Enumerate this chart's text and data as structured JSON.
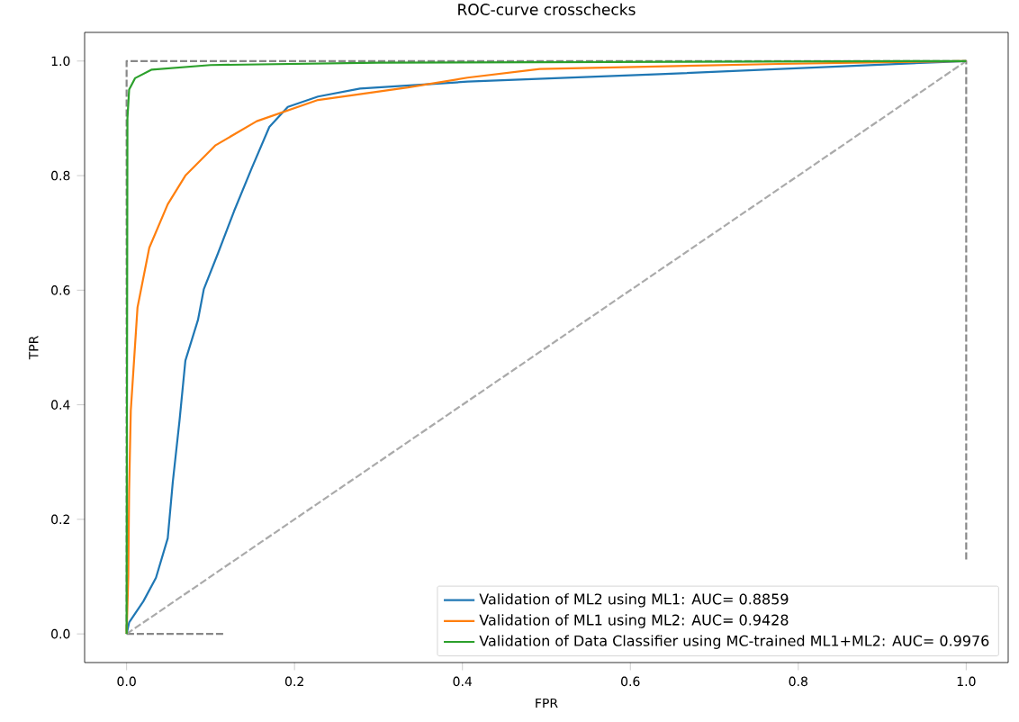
{
  "chart_data": {
    "type": "line",
    "title": "ROC-curve crosschecks",
    "xlabel": "FPR",
    "ylabel": "TPR",
    "xlim": [
      -0.05,
      1.05
    ],
    "ylim": [
      -0.05,
      1.05
    ],
    "xticks": [
      {
        "value": 0,
        "label": "0.0"
      },
      {
        "value": 0.2,
        "label": "0.2"
      },
      {
        "value": 0.4,
        "label": "0.4"
      },
      {
        "value": 0.6,
        "label": "0.6"
      },
      {
        "value": 0.8,
        "label": "0.8"
      },
      {
        "value": 1,
        "label": "1.0"
      }
    ],
    "yticks": [
      {
        "value": 0,
        "label": "0.0"
      },
      {
        "value": 0.2,
        "label": "0.2"
      },
      {
        "value": 0.4,
        "label": "0.4"
      },
      {
        "value": 0.6,
        "label": "0.6"
      },
      {
        "value": 0.8,
        "label": "0.8"
      },
      {
        "value": 1,
        "label": "1.0"
      }
    ],
    "legend": "bottom right",
    "series": [
      {
        "color": "#888888",
        "line_style": "dashed",
        "x": [
          1,
          1,
          0,
          0,
          0.117
        ],
        "values": [
          0.13,
          1,
          1,
          0,
          0
        ]
      },
      {
        "color": "#aaaaaa",
        "line_style": "dashed",
        "x": [
          0,
          1
        ],
        "values": [
          0,
          1
        ]
      },
      {
        "name": "Validation of ML2 using ML1: AUC= 0.8859",
        "color": "#1f77b4",
        "x": [
          0,
          0.003,
          0.02,
          0.035,
          0.049,
          0.055,
          0.063,
          0.07,
          0.085,
          0.092,
          0.109,
          0.128,
          0.149,
          0.17,
          0.192,
          0.228,
          0.278,
          0.406,
          0.635,
          1
        ],
        "values": [
          0,
          0.02,
          0.057,
          0.098,
          0.167,
          0.265,
          0.372,
          0.477,
          0.548,
          0.602,
          0.665,
          0.738,
          0.813,
          0.885,
          0.92,
          0.938,
          0.952,
          0.964,
          0.977,
          1
        ]
      },
      {
        "name": "Validation of ML1 using ML2: AUC= 0.9428",
        "color": "#ff7f0e",
        "x": [
          0,
          0.002,
          0.003,
          0.005,
          0.013,
          0.027,
          0.049,
          0.07,
          0.106,
          0.155,
          0.228,
          0.335,
          0.406,
          0.492,
          0.777,
          1
        ],
        "values": [
          0,
          0.1,
          0.25,
          0.39,
          0.57,
          0.674,
          0.75,
          0.8,
          0.853,
          0.895,
          0.932,
          0.954,
          0.971,
          0.986,
          0.995,
          1
        ]
      },
      {
        "name": "Validation of Data Classifier using MC-trained ML1+ML2: AUC= 0.9976",
        "color": "#2ca02c",
        "x": [
          0,
          0.001,
          0.003,
          0.01,
          0.03,
          0.1,
          0.3,
          1
        ],
        "values": [
          0,
          0.9,
          0.95,
          0.97,
          0.985,
          0.993,
          0.997,
          1
        ]
      }
    ]
  }
}
